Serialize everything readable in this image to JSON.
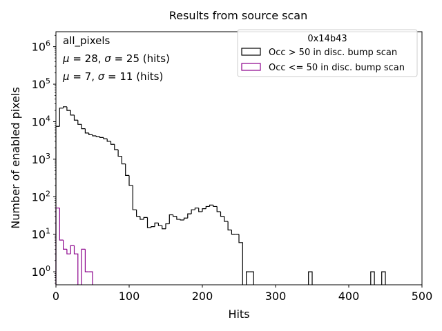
{
  "chart_data": {
    "type": "histogram",
    "title": "Results from source scan",
    "xlabel": "Hits",
    "ylabel": "Number of enabled pixels",
    "yscale": "log",
    "xlim": [
      0,
      500
    ],
    "ylim": [
      0.45,
      2500000
    ],
    "bin_width": 5,
    "x_ticks": [
      {
        "value": 0,
        "label": "0"
      },
      {
        "value": 100,
        "label": "100"
      },
      {
        "value": 200,
        "label": "200"
      },
      {
        "value": 300,
        "label": "300"
      },
      {
        "value": 400,
        "label": "400"
      },
      {
        "value": 500,
        "label": "500"
      }
    ],
    "y_ticks": [
      {
        "value": 1,
        "base": "10",
        "exp": "0"
      },
      {
        "value": 10,
        "base": "10",
        "exp": "1"
      },
      {
        "value": 100,
        "base": "10",
        "exp": "2"
      },
      {
        "value": 1000,
        "base": "10",
        "exp": "3"
      },
      {
        "value": 10000,
        "base": "10",
        "exp": "4"
      },
      {
        "value": 100000,
        "base": "10",
        "exp": "5"
      },
      {
        "value": 1000000,
        "base": "10",
        "exp": "6"
      }
    ],
    "annotations": {
      "name": "all_pixels",
      "stats_series1": {
        "mu_value": "28",
        "sigma_value": "25",
        "unit": "(hits)"
      },
      "stats_series2": {
        "mu_value": "7",
        "sigma_value": "11",
        "unit": "(hits)"
      }
    },
    "legend": {
      "title": "0x14b43",
      "placement": "top-right"
    },
    "series": [
      {
        "name": "Occ > 50 in disc. bump scan",
        "color": "#000000",
        "bins": [
          [
            0,
            7500
          ],
          [
            5,
            23000
          ],
          [
            10,
            25000
          ],
          [
            15,
            20000
          ],
          [
            20,
            15000
          ],
          [
            25,
            11000
          ],
          [
            30,
            8500
          ],
          [
            35,
            6500
          ],
          [
            40,
            5000
          ],
          [
            45,
            4500
          ],
          [
            50,
            4200
          ],
          [
            55,
            4000
          ],
          [
            60,
            3800
          ],
          [
            65,
            3500
          ],
          [
            70,
            3000
          ],
          [
            75,
            2500
          ],
          [
            80,
            1800
          ],
          [
            85,
            1200
          ],
          [
            90,
            750
          ],
          [
            95,
            370
          ],
          [
            100,
            200
          ],
          [
            105,
            45
          ],
          [
            110,
            30
          ],
          [
            115,
            25
          ],
          [
            120,
            28
          ],
          [
            125,
            15
          ],
          [
            130,
            16
          ],
          [
            135,
            20
          ],
          [
            140,
            17
          ],
          [
            145,
            14
          ],
          [
            150,
            19
          ],
          [
            155,
            33
          ],
          [
            160,
            30
          ],
          [
            165,
            25
          ],
          [
            170,
            24
          ],
          [
            175,
            27
          ],
          [
            180,
            35
          ],
          [
            185,
            45
          ],
          [
            190,
            50
          ],
          [
            195,
            40
          ],
          [
            200,
            48
          ],
          [
            205,
            55
          ],
          [
            210,
            60
          ],
          [
            215,
            55
          ],
          [
            220,
            40
          ],
          [
            225,
            30
          ],
          [
            230,
            22
          ],
          [
            235,
            13
          ],
          [
            240,
            10
          ],
          [
            245,
            10
          ],
          [
            250,
            6
          ],
          [
            255,
            0
          ],
          [
            260,
            1
          ],
          [
            265,
            1
          ],
          [
            345,
            1
          ],
          [
            430,
            1
          ],
          [
            445,
            1
          ]
        ]
      },
      {
        "name": "Occ <= 50 in disc. bump scan",
        "color": "#8b008b",
        "bins": [
          [
            0,
            50
          ],
          [
            5,
            7
          ],
          [
            10,
            4
          ],
          [
            15,
            3
          ],
          [
            20,
            5
          ],
          [
            25,
            3
          ],
          [
            30,
            0
          ],
          [
            35,
            4
          ],
          [
            40,
            1
          ],
          [
            45,
            1
          ]
        ]
      }
    ]
  }
}
